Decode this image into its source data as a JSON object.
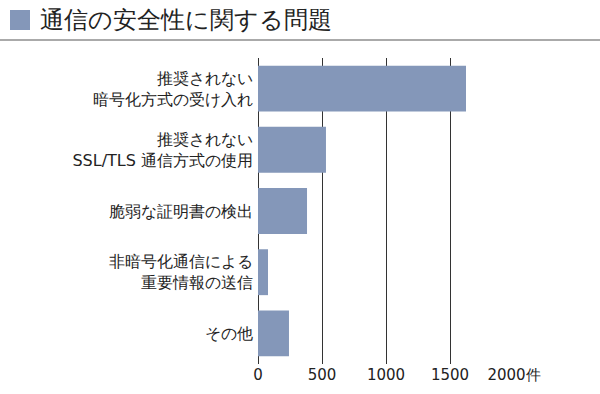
{
  "chart_data": {
    "type": "bar",
    "title": "通信の安全性に関する問題",
    "orientation": "horizontal",
    "categories": [
      "推奨されない\n暗号化方式の受け入れ",
      "推奨されない\nSSL/TLS 通信方式の使用",
      "脆弱な証明書の検出",
      "非暗号化通信による\n重要情報の送信",
      "その他"
    ],
    "values": [
      1625,
      531,
      383,
      78,
      242
    ],
    "color": "#8497b9",
    "xlim": [
      0,
      2000
    ],
    "xticks": [
      0,
      500,
      1000,
      1500,
      {
        "value": 2000,
        "label": "2000件"
      }
    ],
    "grid": true
  }
}
